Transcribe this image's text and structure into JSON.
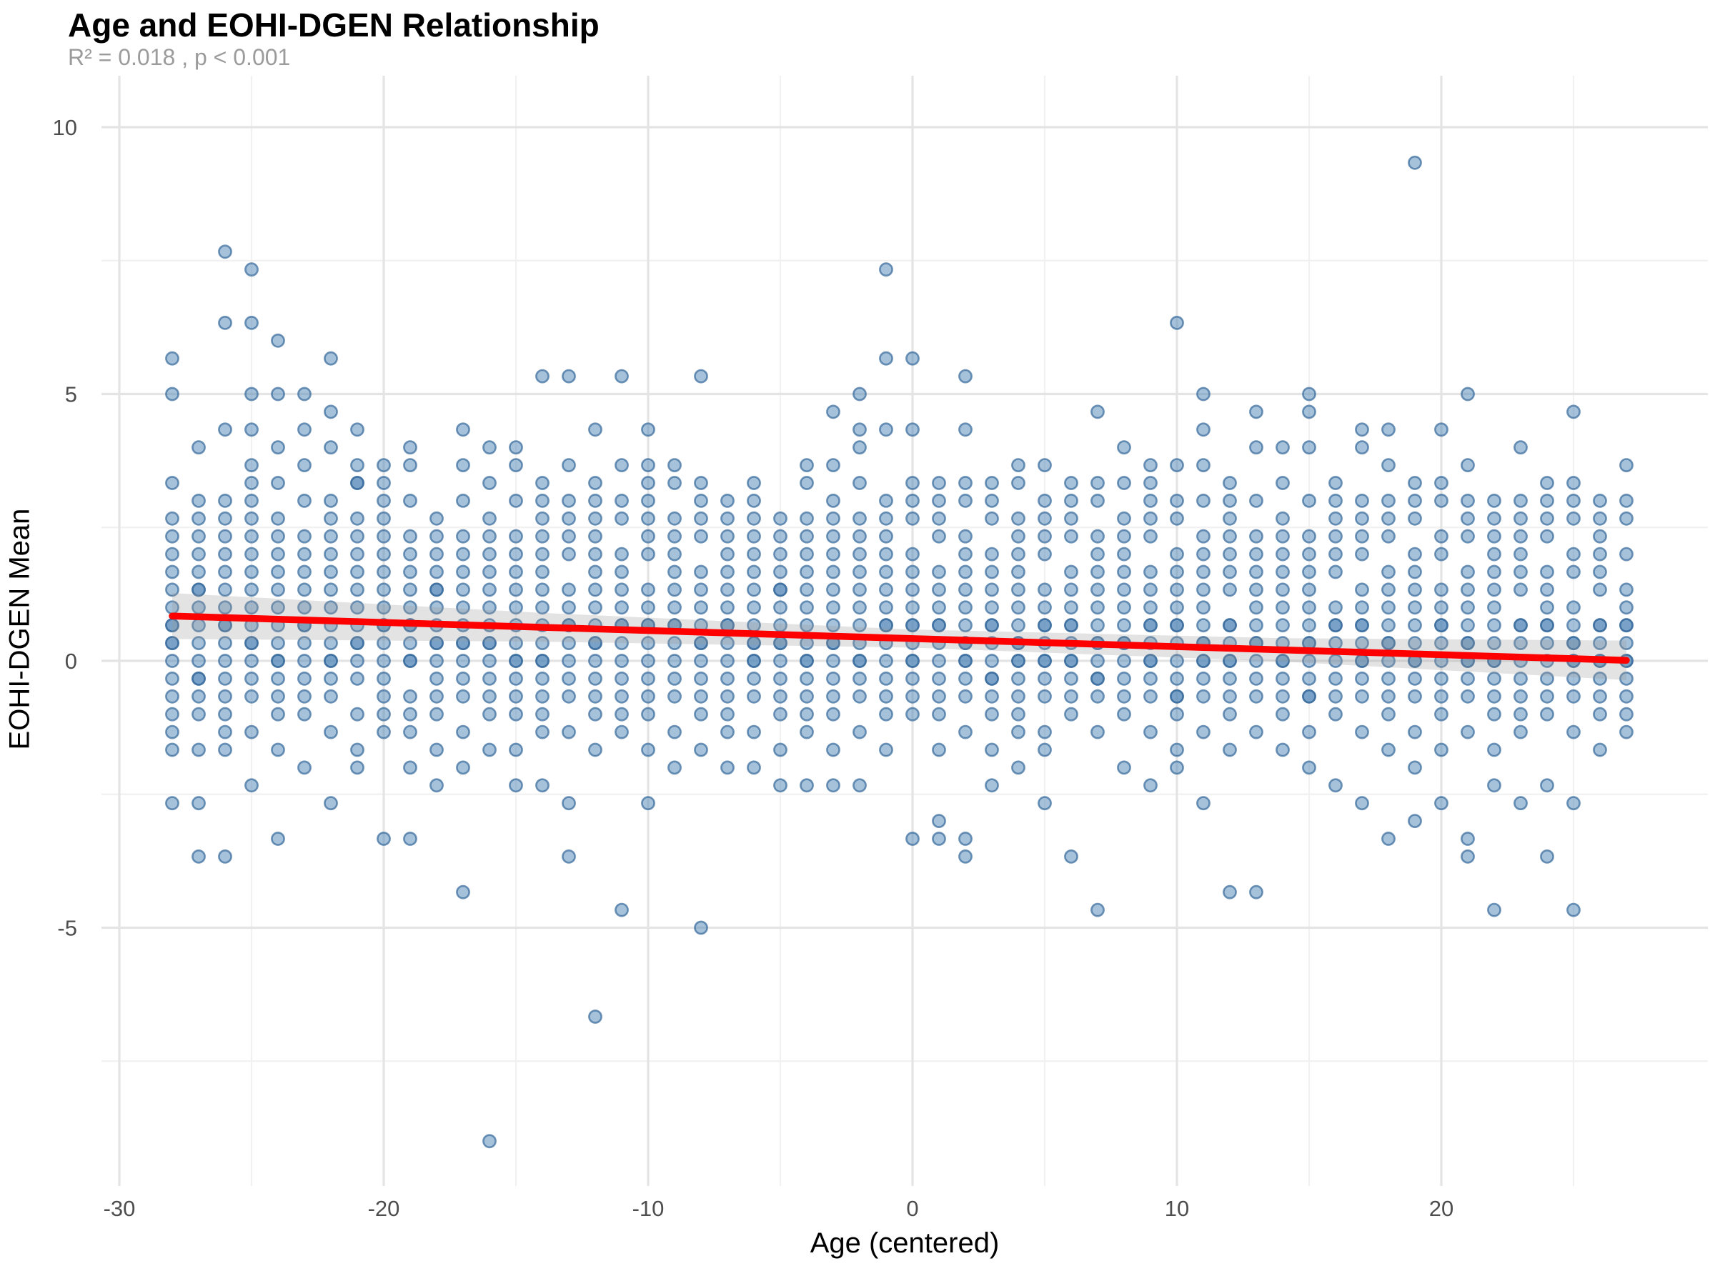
{
  "header": {
    "title": "Age and EOHI-DGEN Relationship",
    "subtitle": "R² = 0.018 , p < 0.001"
  },
  "chart_data": {
    "type": "scatter",
    "title": "Age and EOHI-DGEN Relationship",
    "subtitle": "R² = 0.018 , p < 0.001",
    "xlabel": "Age (centered)",
    "ylabel": "EOHI-DGEN Mean",
    "xlim": [
      -31.5,
      30
    ],
    "ylim": [
      -9.8,
      10.9
    ],
    "grid": true,
    "legend": "none",
    "x_ticks": [
      {
        "value": -30,
        "label": "-30"
      },
      {
        "value": -20,
        "label": "-20"
      },
      {
        "value": -10,
        "label": "-10"
      },
      {
        "value": 0,
        "label": "0"
      },
      {
        "value": 10,
        "label": "10"
      },
      {
        "value": 20,
        "label": "20"
      }
    ],
    "x_minor_ticks": [
      -25,
      -15,
      -5,
      5,
      15,
      25
    ],
    "y_ticks": [
      {
        "value": 10,
        "label": "10"
      },
      {
        "value": 5,
        "label": "5"
      },
      {
        "value": 0,
        "label": "0"
      },
      {
        "value": -5,
        "label": "-5"
      }
    ],
    "y_minor_ticks": [
      7.5,
      2.5,
      -2.5,
      -7.5
    ],
    "regression": {
      "color": "#fe0000",
      "x_start": -28,
      "y_start": 0.84,
      "x_end": 27,
      "y_end": 0.01,
      "r_squared": 0.018,
      "p_text": "p < 0.001",
      "ci_color": "#999999",
      "ci_x": [
        -28,
        -14,
        0,
        14,
        27
      ],
      "ci_halfwidth": [
        0.43,
        0.27,
        0.17,
        0.22,
        0.37
      ]
    },
    "point_style": {
      "fill": "#4e83b5",
      "fill_opacity": 0.5,
      "stroke": "#35689a",
      "stroke_opacity": 0.7,
      "radius_px": 8.6
    },
    "y_encoding": "values stored as thirds: y = v/3",
    "points_by_age": {
      "-28": [
        17,
        15,
        10,
        8,
        7,
        6,
        5,
        4,
        3,
        2,
        2,
        1,
        1,
        0,
        -1,
        -2,
        -3,
        -4,
        -5,
        -8
      ],
      "-27": [
        12,
        9,
        8,
        7,
        6,
        5,
        4,
        4,
        3,
        2,
        1,
        0,
        -1,
        -1,
        -2,
        -3,
        -5,
        -8,
        -11
      ],
      "-26": [
        23,
        19,
        13,
        9,
        8,
        7,
        6,
        5,
        4,
        3,
        2,
        2,
        1,
        0,
        -1,
        -2,
        -3,
        -4,
        -5,
        -11
      ],
      "-25": [
        22,
        19,
        15,
        13,
        11,
        10,
        9,
        8,
        7,
        6,
        5,
        4,
        3,
        2,
        1,
        1,
        0,
        -1,
        -2,
        -4,
        -7
      ],
      "-24": [
        18,
        15,
        12,
        10,
        8,
        7,
        6,
        5,
        4,
        3,
        2,
        1,
        0,
        0,
        -1,
        -2,
        -3,
        -5,
        -10
      ],
      "-23": [
        15,
        13,
        11,
        9,
        7,
        6,
        5,
        4,
        3,
        2,
        2,
        1,
        0,
        -1,
        -2,
        -3,
        -6
      ],
      "-22": [
        17,
        14,
        12,
        9,
        8,
        7,
        6,
        5,
        4,
        3,
        2,
        1,
        0,
        0,
        -1,
        -2,
        -4,
        -8
      ],
      "-21": [
        13,
        11,
        10,
        10,
        8,
        7,
        6,
        5,
        4,
        3,
        2,
        1,
        1,
        0,
        -1,
        -3,
        -5,
        -6
      ],
      "-20": [
        11,
        10,
        9,
        8,
        7,
        6,
        5,
        4,
        3,
        2,
        2,
        1,
        0,
        -1,
        -2,
        -3,
        -4,
        -10
      ],
      "-19": [
        12,
        11,
        9,
        7,
        6,
        5,
        4,
        3,
        2,
        2,
        1,
        0,
        0,
        -2,
        -3,
        -4,
        -6,
        -10
      ],
      "-18": [
        8,
        7,
        6,
        5,
        4,
        4,
        3,
        2,
        1,
        1,
        0,
        -1,
        -2,
        -3,
        -5,
        -7
      ],
      "-17": [
        13,
        11,
        9,
        7,
        6,
        5,
        4,
        3,
        2,
        1,
        1,
        0,
        -1,
        -2,
        -4,
        -6,
        -13
      ],
      "-16": [
        12,
        10,
        8,
        7,
        6,
        5,
        4,
        3,
        2,
        1,
        1,
        0,
        -1,
        -2,
        -3,
        -5,
        -27
      ],
      "-15": [
        12,
        11,
        9,
        7,
        6,
        5,
        4,
        3,
        2,
        1,
        0,
        0,
        -1,
        -2,
        -3,
        -5,
        -7
      ],
      "-14": [
        16,
        10,
        9,
        8,
        7,
        6,
        5,
        4,
        3,
        2,
        1,
        0,
        0,
        -1,
        -2,
        -3,
        -4,
        -7
      ],
      "-13": [
        16,
        11,
        9,
        8,
        7,
        6,
        4,
        3,
        2,
        2,
        1,
        0,
        -1,
        -2,
        -4,
        -8,
        -11
      ],
      "-12": [
        13,
        10,
        9,
        8,
        7,
        6,
        5,
        4,
        3,
        2,
        1,
        1,
        0,
        -1,
        -2,
        -3,
        -5,
        -20
      ],
      "-11": [
        16,
        11,
        9,
        8,
        6,
        5,
        4,
        3,
        2,
        2,
        1,
        0,
        -1,
        -2,
        -3,
        -4,
        -14
      ],
      "-10": [
        13,
        11,
        10,
        9,
        8,
        7,
        6,
        4,
        3,
        2,
        2,
        1,
        0,
        -1,
        -2,
        -3,
        -5,
        -8
      ],
      "-9": [
        11,
        10,
        8,
        7,
        6,
        5,
        4,
        3,
        2,
        2,
        1,
        0,
        -1,
        -2,
        -4,
        -6
      ],
      "-8": [
        16,
        10,
        9,
        8,
        7,
        5,
        4,
        3,
        2,
        1,
        1,
        0,
        -1,
        -2,
        -3,
        -5,
        -15
      ],
      "-7": [
        9,
        8,
        7,
        6,
        5,
        4,
        3,
        2,
        2,
        1,
        0,
        -1,
        -2,
        -3,
        -4,
        -6
      ],
      "-6": [
        10,
        9,
        8,
        7,
        6,
        5,
        4,
        3,
        2,
        1,
        1,
        0,
        0,
        -1,
        -2,
        -4,
        -6
      ],
      "-5": [
        8,
        7,
        6,
        5,
        4,
        4,
        3,
        2,
        1,
        1,
        0,
        -1,
        -2,
        -3,
        -5,
        -7
      ],
      "-4": [
        11,
        10,
        8,
        7,
        6,
        5,
        4,
        3,
        2,
        1,
        0,
        0,
        -1,
        -2,
        -3,
        -4,
        -7
      ],
      "-3": [
        14,
        11,
        9,
        8,
        7,
        6,
        5,
        4,
        3,
        2,
        1,
        1,
        0,
        -1,
        -2,
        -3,
        -5,
        -7
      ],
      "-2": [
        15,
        13,
        12,
        10,
        8,
        7,
        6,
        5,
        4,
        3,
        2,
        1,
        0,
        0,
        -1,
        -2,
        -4,
        -7
      ],
      "-1": [
        22,
        17,
        13,
        9,
        8,
        7,
        6,
        5,
        4,
        3,
        2,
        2,
        1,
        0,
        -1,
        -2,
        -3,
        -5
      ],
      "0": [
        17,
        13,
        10,
        9,
        8,
        6,
        5,
        4,
        3,
        2,
        2,
        1,
        0,
        0,
        -1,
        -2,
        -3,
        -10
      ],
      "1": [
        10,
        9,
        8,
        7,
        5,
        4,
        3,
        2,
        2,
        1,
        0,
        -1,
        -2,
        -3,
        -5,
        -9,
        -10
      ],
      "2": [
        16,
        13,
        10,
        9,
        7,
        6,
        5,
        4,
        3,
        2,
        1,
        1,
        0,
        0,
        -1,
        -2,
        -4,
        -10,
        -11
      ],
      "3": [
        10,
        9,
        8,
        6,
        5,
        4,
        3,
        2,
        2,
        1,
        0,
        -1,
        -1,
        -2,
        -3,
        -5,
        -7
      ],
      "4": [
        11,
        10,
        8,
        7,
        6,
        5,
        4,
        3,
        2,
        1,
        1,
        0,
        0,
        -1,
        -2,
        -3,
        -4,
        -6
      ],
      "5": [
        11,
        9,
        8,
        7,
        6,
        4,
        3,
        2,
        2,
        1,
        0,
        0,
        -1,
        -2,
        -4,
        -5,
        -8
      ],
      "6": [
        10,
        9,
        8,
        7,
        5,
        4,
        3,
        2,
        2,
        1,
        0,
        0,
        -1,
        -2,
        -3,
        -11
      ],
      "7": [
        14,
        10,
        9,
        7,
        6,
        5,
        4,
        3,
        2,
        1,
        1,
        0,
        -1,
        -1,
        -2,
        -4,
        -14
      ],
      "8": [
        12,
        10,
        8,
        7,
        6,
        5,
        4,
        3,
        2,
        1,
        1,
        0,
        -1,
        -2,
        -3,
        -6
      ],
      "9": [
        11,
        10,
        9,
        8,
        7,
        5,
        4,
        3,
        2,
        2,
        1,
        0,
        0,
        -1,
        -2,
        -4,
        -7
      ],
      "10": [
        19,
        11,
        9,
        8,
        6,
        5,
        4,
        3,
        2,
        2,
        1,
        0,
        -1,
        -2,
        -2,
        -3,
        -5,
        -6
      ],
      "11": [
        15,
        13,
        11,
        9,
        7,
        6,
        5,
        4,
        3,
        2,
        1,
        1,
        0,
        0,
        -1,
        -2,
        -4,
        -8
      ],
      "12": [
        10,
        9,
        8,
        7,
        6,
        5,
        4,
        2,
        2,
        1,
        0,
        0,
        -1,
        -2,
        -3,
        -5,
        -13
      ],
      "13": [
        14,
        12,
        9,
        7,
        6,
        5,
        4,
        3,
        2,
        1,
        1,
        0,
        -1,
        -2,
        -4,
        -13
      ],
      "14": [
        12,
        10,
        8,
        7,
        6,
        5,
        4,
        3,
        2,
        1,
        0,
        0,
        -1,
        -2,
        -3,
        -5
      ],
      "15": [
        15,
        14,
        12,
        9,
        7,
        6,
        5,
        4,
        3,
        2,
        1,
        1,
        0,
        -1,
        -2,
        -2,
        -4,
        -6
      ],
      "16": [
        10,
        9,
        8,
        7,
        6,
        5,
        3,
        2,
        2,
        1,
        0,
        -1,
        -2,
        -3,
        -7
      ],
      "17": [
        13,
        12,
        9,
        8,
        7,
        6,
        4,
        3,
        2,
        2,
        1,
        0,
        0,
        -1,
        -2,
        -4,
        -8
      ],
      "18": [
        13,
        11,
        9,
        8,
        7,
        5,
        4,
        3,
        2,
        1,
        1,
        0,
        -1,
        -2,
        -3,
        -5,
        -10
      ],
      "19": [
        28,
        10,
        9,
        8,
        6,
        5,
        4,
        3,
        2,
        1,
        0,
        0,
        -1,
        -2,
        -4,
        -6,
        -9
      ],
      "20": [
        13,
        10,
        9,
        7,
        6,
        4,
        3,
        2,
        2,
        1,
        0,
        -1,
        -2,
        -3,
        -5,
        -8
      ],
      "21": [
        15,
        11,
        9,
        8,
        7,
        5,
        4,
        3,
        2,
        1,
        1,
        0,
        0,
        -1,
        -2,
        -4,
        -10,
        -11
      ],
      "22": [
        9,
        8,
        7,
        6,
        5,
        4,
        3,
        2,
        1,
        0,
        0,
        -1,
        -2,
        -3,
        -5,
        -7,
        -14
      ],
      "23": [
        12,
        9,
        8,
        7,
        6,
        5,
        4,
        2,
        2,
        1,
        0,
        -1,
        -2,
        -3,
        -4,
        -8
      ],
      "24": [
        10,
        9,
        8,
        7,
        5,
        4,
        3,
        2,
        2,
        1,
        0,
        -1,
        -2,
        -3,
        -7,
        -11
      ],
      "25": [
        14,
        10,
        9,
        8,
        6,
        5,
        3,
        2,
        1,
        1,
        0,
        0,
        -1,
        -2,
        -4,
        -8,
        -14
      ],
      "26": [
        9,
        8,
        7,
        6,
        5,
        4,
        2,
        2,
        1,
        0,
        0,
        -1,
        -2,
        -3,
        -5
      ],
      "27": [
        11,
        9,
        8,
        6,
        4,
        3,
        2,
        2,
        1,
        0,
        0,
        -1,
        -2,
        -3,
        -4
      ]
    }
  },
  "colors": {
    "background": "#ffffff",
    "grid_major": "#e4e4e4",
    "grid_minor": "#f1f1f1",
    "tick_label": "#4d4d4d",
    "subtitle": "#9b9b9b",
    "regression_line": "#fe0000",
    "ci_band": "#999999",
    "point": "#4e83b5"
  }
}
